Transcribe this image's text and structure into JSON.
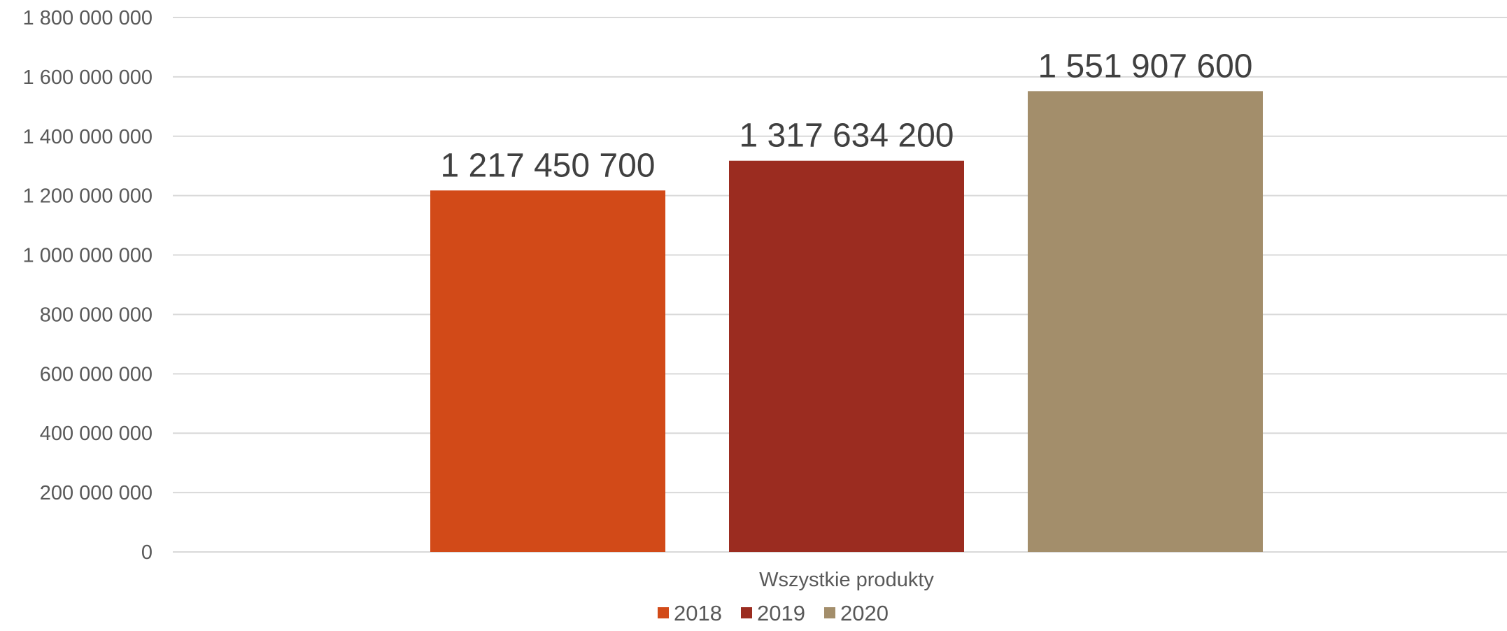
{
  "chart_data": {
    "type": "bar",
    "title": "",
    "xlabel": "",
    "ylabel": "",
    "categories": [
      "Wszystkie produkty"
    ],
    "series": [
      {
        "name": "2018",
        "values": [
          1217450700
        ],
        "color": "#D24A18",
        "label": "1 217 450 700"
      },
      {
        "name": "2019",
        "values": [
          1317634200
        ],
        "color": "#9B2C20",
        "label": "1 317 634 200"
      },
      {
        "name": "2020",
        "values": [
          1551907600
        ],
        "color": "#A38E6B",
        "label": "1 551 907 600"
      }
    ],
    "ylim": [
      0,
      1800000000
    ],
    "yticks": [
      0,
      200000000,
      400000000,
      600000000,
      800000000,
      1000000000,
      1200000000,
      1400000000,
      1600000000,
      1800000000
    ],
    "ytick_labels": [
      "0",
      "200 000 000",
      "400 000 000",
      "600 000 000",
      "800 000 000",
      "1 000 000 000",
      "1 200 000 000",
      "1 400 000 000",
      "1 600 000 000",
      "1 800 000 000"
    ],
    "grid": true,
    "legend_position": "bottom",
    "gridline_color": "#D9D9D9"
  }
}
